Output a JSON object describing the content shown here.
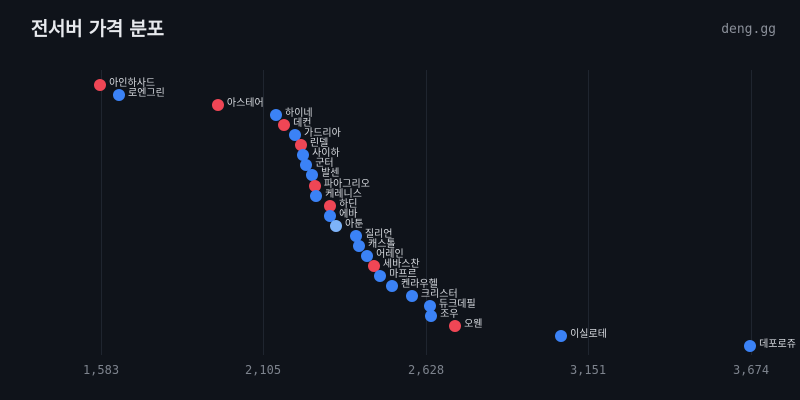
{
  "header": {
    "title": "전서버 가격 분포",
    "brand": "deng.gg"
  },
  "colors": {
    "background": "#0f131a",
    "red": "#ef4655",
    "blue": "#3b82f6",
    "lightblue": "#7eb3f9",
    "grid": "#1f252f"
  },
  "chart_data": {
    "type": "scatter",
    "title": "전서버 가격 분포",
    "xlabel": "",
    "ylabel": "",
    "xlim": [
      1583,
      3674
    ],
    "x_ticks": [
      "1,583",
      "2,105",
      "2,628",
      "3,151",
      "3,674"
    ],
    "x_tick_values": [
      1583,
      2105,
      2628,
      3151,
      3674
    ],
    "grid": "vertical",
    "legend": "none",
    "points": [
      {
        "name": "아인하사드",
        "value": 1580,
        "color": "red"
      },
      {
        "name": "로엔그린",
        "value": 1641,
        "color": "blue"
      },
      {
        "name": "아스테어",
        "value": 1959,
        "color": "red"
      },
      {
        "name": "하이네",
        "value": 2146,
        "color": "blue"
      },
      {
        "name": "데컨",
        "value": 2172,
        "color": "red"
      },
      {
        "name": "가드리아",
        "value": 2207,
        "color": "blue"
      },
      {
        "name": "린델",
        "value": 2226,
        "color": "red"
      },
      {
        "name": "사이하",
        "value": 2233,
        "color": "blue"
      },
      {
        "name": "군터",
        "value": 2243,
        "color": "blue"
      },
      {
        "name": "발센",
        "value": 2262,
        "color": "blue"
      },
      {
        "name": "파아그리오",
        "value": 2271,
        "color": "red"
      },
      {
        "name": "케레니스",
        "value": 2275,
        "color": "blue"
      },
      {
        "name": "하딘",
        "value": 2320,
        "color": "red"
      },
      {
        "name": "에바",
        "value": 2320,
        "color": "blue"
      },
      {
        "name": "아툰",
        "value": 2339,
        "color": "lightblue"
      },
      {
        "name": "질리언",
        "value": 2403,
        "color": "blue"
      },
      {
        "name": "캐스톨",
        "value": 2413,
        "color": "blue"
      },
      {
        "name": "어레인",
        "value": 2439,
        "color": "blue"
      },
      {
        "name": "세바스찬",
        "value": 2461,
        "color": "red"
      },
      {
        "name": "마프르",
        "value": 2481,
        "color": "blue"
      },
      {
        "name": "켄라우헬",
        "value": 2519,
        "color": "blue"
      },
      {
        "name": "크리스터",
        "value": 2583,
        "color": "blue"
      },
      {
        "name": "듀크데필",
        "value": 2641,
        "color": "blue"
      },
      {
        "name": "조우",
        "value": 2645,
        "color": "blue"
      },
      {
        "name": "오웬",
        "value": 2722,
        "color": "red"
      },
      {
        "name": "이실로테",
        "value": 3063,
        "color": "blue"
      },
      {
        "name": "데포로쥬",
        "value": 3671,
        "color": "blue"
      }
    ]
  }
}
